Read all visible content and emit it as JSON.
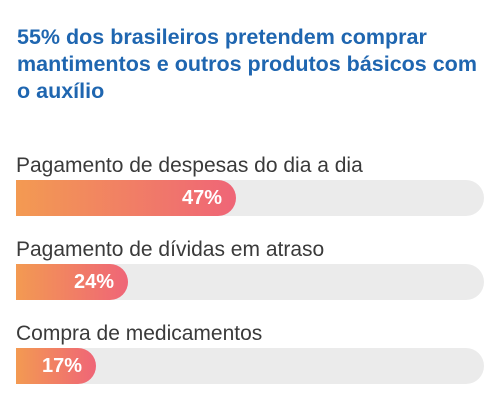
{
  "title": "55% dos brasileiros pretendem comprar mantimentos e outros produtos básicos com o auxílio",
  "colors": {
    "title": "#1f66b0",
    "bar_start": "#f39a52",
    "bar_end": "#ef6577",
    "track": "#ebebeb",
    "label": "#3a3a3a",
    "value_text": "#ffffff"
  },
  "chart_data": {
    "type": "bar",
    "orientation": "horizontal",
    "title": "55% dos brasileiros pretendem comprar mantimentos e outros produtos básicos com o auxílio",
    "xlim": [
      0,
      100
    ],
    "grid": false,
    "legend": "none",
    "categories": [
      "Pagamento de despesas do dia a dia",
      "Pagamento de dívidas em atraso",
      "Compra de medicamentos"
    ],
    "values": [
      47,
      24,
      17
    ],
    "value_labels": [
      "47%",
      "24%",
      "17%"
    ]
  }
}
